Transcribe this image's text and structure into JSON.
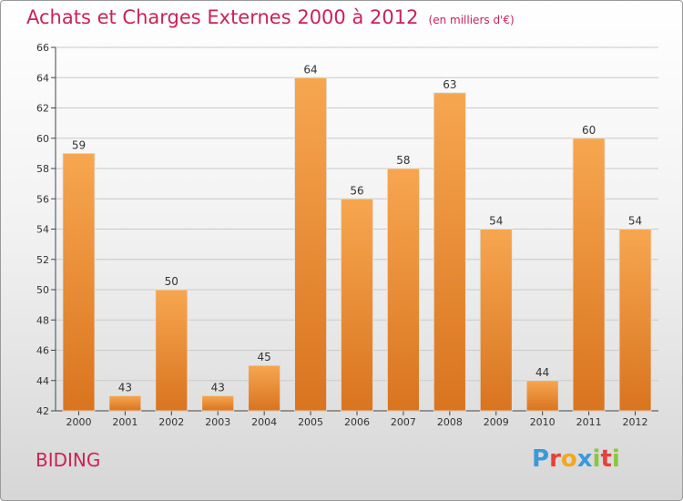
{
  "chart_data": {
    "type": "bar",
    "title": "Achats et Charges Externes 2000 à 2012",
    "subtitle": "(en milliers d'€)",
    "categories": [
      "2000",
      "2001",
      "2002",
      "2003",
      "2004",
      "2005",
      "2006",
      "2007",
      "2008",
      "2009",
      "2010",
      "2011",
      "2012"
    ],
    "values": [
      59,
      43,
      50,
      43,
      45,
      64,
      56,
      58,
      63,
      54,
      44,
      60,
      54
    ],
    "ylim": [
      42,
      66
    ],
    "yticks": [
      42,
      44,
      46,
      48,
      50,
      52,
      54,
      56,
      58,
      60,
      62,
      64,
      66
    ],
    "grid": true,
    "bar_color_top": "#f7a650",
    "bar_color_bottom": "#d9741f"
  },
  "footer": {
    "commune": "BIDING",
    "logo_text": "Proxiti",
    "logo_colors": [
      "#3a9ad9",
      "#e8403a",
      "#f2a81d",
      "#3a9ad9",
      "#8cc63f",
      "#e8403a",
      "#8cc63f"
    ]
  }
}
